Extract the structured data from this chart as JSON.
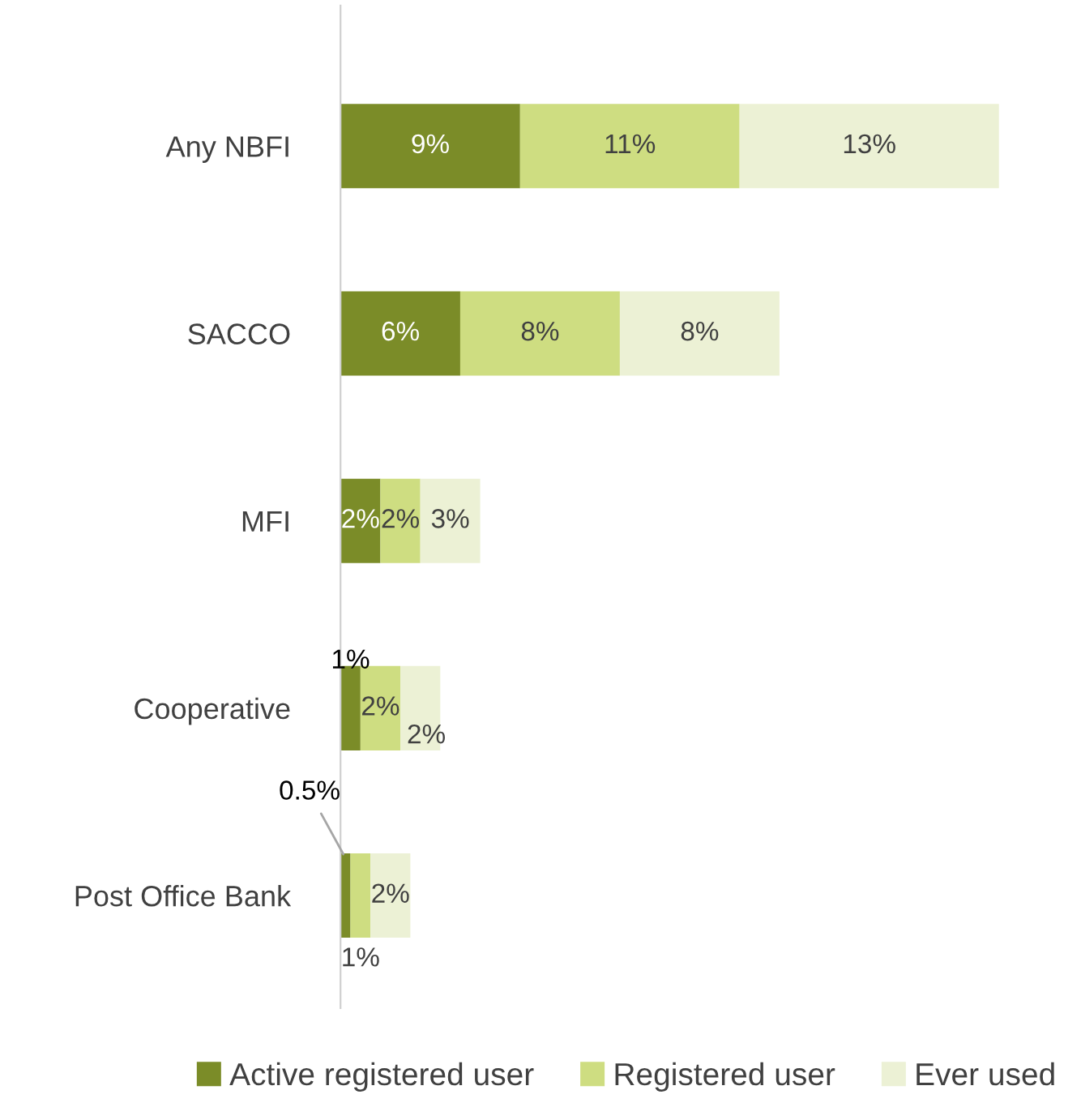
{
  "chart_data": {
    "type": "bar",
    "orientation": "horizontal",
    "stacked": true,
    "categories": [
      "Any NBFI",
      "SACCO",
      "MFI",
      "Cooperative",
      "Post Office Bank"
    ],
    "series": [
      {
        "name": "Active registered user",
        "color": "#7b8c28",
        "values": [
          9,
          6,
          2,
          1,
          0.5
        ],
        "value_labels": [
          "9%",
          "6%",
          "2%",
          "1%",
          "0.5%"
        ]
      },
      {
        "name": "Registered user",
        "color": "#cedd81",
        "values": [
          11,
          8,
          2,
          2,
          1
        ],
        "value_labels": [
          "11%",
          "8%",
          "2%",
          "2%",
          "1%"
        ]
      },
      {
        "name": "Ever used",
        "color": "#ecf1d5",
        "values": [
          13,
          8,
          3,
          2,
          2
        ],
        "value_labels": [
          "13%",
          "8%",
          "3%",
          "2%",
          "2%"
        ]
      }
    ],
    "legend": "bottom",
    "grid": false
  }
}
